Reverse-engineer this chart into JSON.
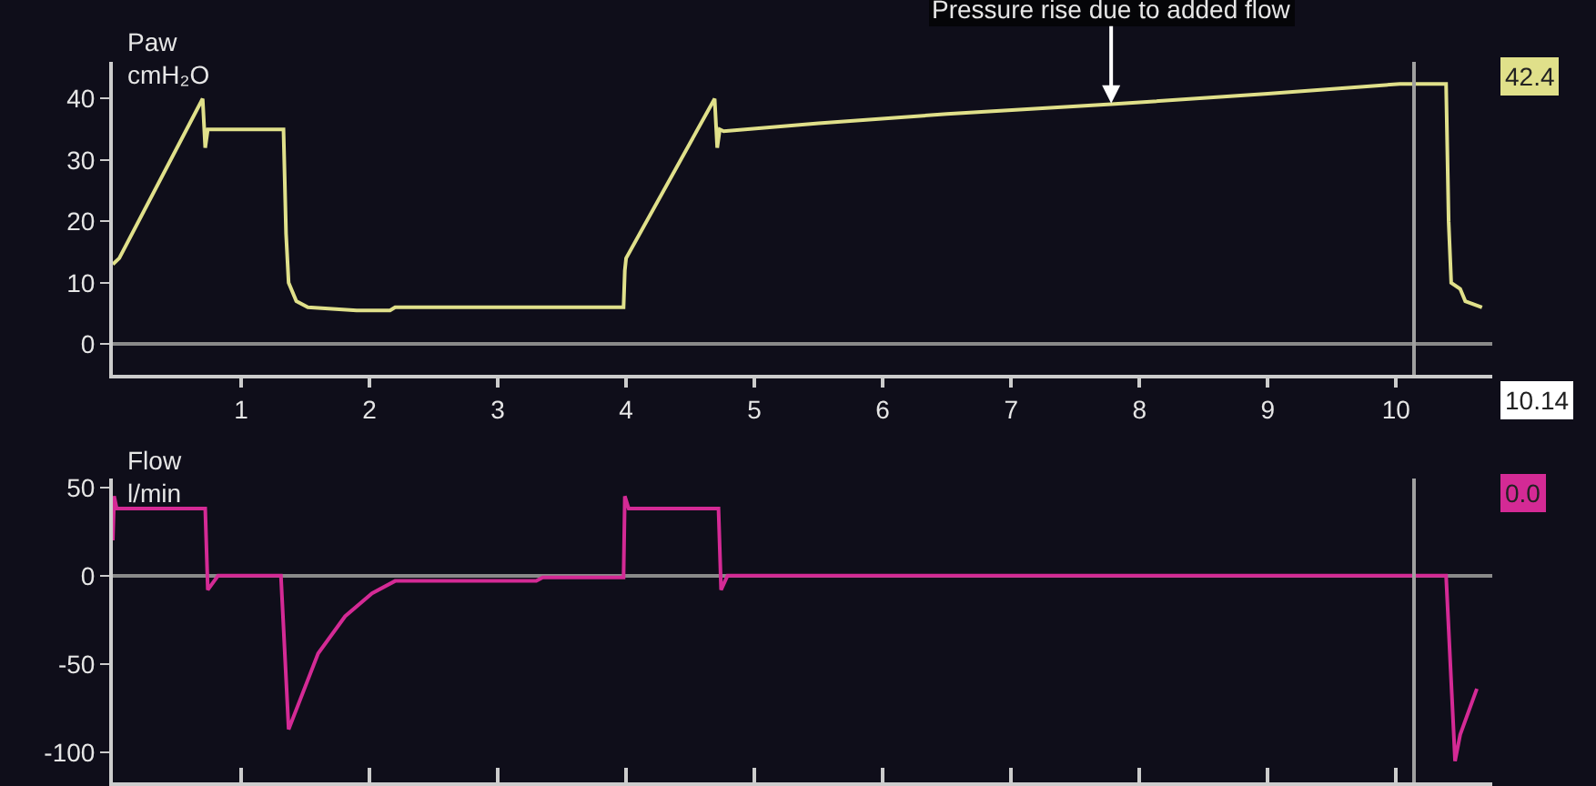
{
  "chart_data": [
    {
      "type": "line",
      "ylabel": "Paw\ncmH₂O",
      "annotations": [
        {
          "text": "Pressure rise due to added flow",
          "x": 7.78,
          "y": 39.2
        },
        "42.4",
        "10.14"
      ],
      "series": [
        {
          "color": "#e0e08a",
          "x": [
            0,
            0.05,
            0.7,
            0.72,
            0.74,
            0.78,
            1.33,
            1.35,
            1.37,
            1.43,
            1.52,
            1.9,
            2.16,
            2.2,
            3.98,
            3.99,
            4.0,
            4.69,
            4.71,
            4.73,
            4.76,
            5.5,
            6.5,
            7.78,
            9,
            10.03,
            10.39,
            10.41,
            10.43,
            10.5,
            10.54,
            10.67
          ],
          "values": [
            13,
            14,
            40,
            32,
            35,
            35,
            35,
            18,
            10,
            7,
            6,
            5.5,
            5.5,
            6,
            6,
            12,
            14,
            40,
            32,
            35,
            34.7,
            36,
            37.5,
            39.1,
            40.8,
            42.4,
            42.4,
            20,
            10,
            9,
            7,
            6
          ]
        }
      ],
      "xlim": [
        0,
        10.75
      ],
      "ylim": [
        -5,
        46
      ],
      "xticks": [
        1,
        2,
        3,
        4,
        5,
        6,
        7,
        8,
        9,
        10
      ],
      "yticks": [
        0,
        10,
        20,
        30,
        40
      ],
      "ref_lines": [
        {
          "axis": "x",
          "value": 10.14
        }
      ]
    },
    {
      "type": "line",
      "ylabel": "Flow\nl/min",
      "annotations": [
        "0.0"
      ],
      "series": [
        {
          "color": "#d42a95",
          "x": [
            0,
            0.01,
            0.03,
            0.72,
            0.74,
            0.82,
            1.31,
            1.37,
            1.6,
            1.81,
            2.02,
            2.2,
            3.3,
            3.35,
            3.98,
            3.99,
            4.02,
            4.72,
            4.74,
            4.79,
            10.39,
            10.46,
            10.5,
            10.63
          ],
          "values": [
            20,
            45,
            38,
            38,
            -8,
            0,
            0,
            -87,
            -44,
            -23,
            -10,
            -3,
            -3,
            -1,
            -1,
            45,
            38,
            38,
            -8,
            0,
            0,
            -105,
            -90,
            -64
          ]
        }
      ],
      "xlim": [
        0,
        10.75
      ],
      "ylim": [
        -117,
        55
      ],
      "xticks": [
        {
          "value": 1,
          "label": null
        },
        {
          "value": 2,
          "label": null
        },
        {
          "value": 3,
          "label": null
        },
        {
          "value": 4,
          "label": null
        },
        {
          "value": 5,
          "label": null
        },
        {
          "value": 6,
          "label": null
        },
        {
          "value": 7,
          "label": null
        },
        {
          "value": 8,
          "label": null
        },
        {
          "value": 9,
          "label": null
        },
        {
          "value": 10,
          "label": null
        }
      ],
      "yticks": [
        -100,
        -50,
        0,
        50
      ],
      "tick_labels": "y",
      "ref_lines": [
        {
          "axis": "x",
          "value": 10.14
        }
      ]
    }
  ]
}
